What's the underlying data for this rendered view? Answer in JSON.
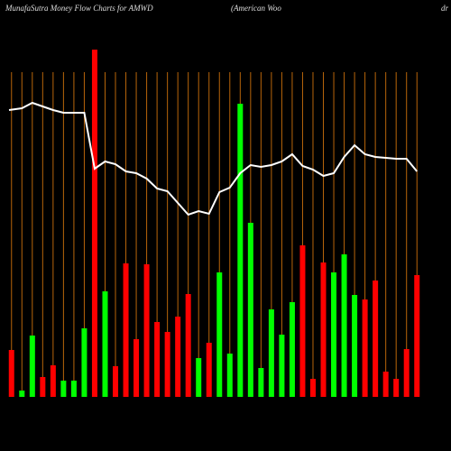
{
  "chart_data": {
    "type": "bar",
    "title": "MunafaSutra  Money Flow  Charts for AMWD",
    "subtitle": "(American Woo",
    "subtitle_tail": "dr",
    "categories": [
      null,
      null,
      null,
      null,
      null,
      null,
      null,
      null,
      null,
      null,
      null,
      null,
      null,
      null,
      null,
      null,
      null,
      null,
      null,
      null,
      null,
      null,
      null,
      null,
      null,
      null,
      null,
      null,
      null,
      null,
      null,
      null,
      null,
      null,
      null,
      null,
      null,
      null,
      null,
      null
    ],
    "values": [
      52,
      7,
      68,
      22,
      35,
      18,
      18,
      76,
      385,
      117,
      34,
      148,
      64,
      147,
      83,
      72,
      89,
      114,
      43,
      60,
      138,
      48,
      325,
      193,
      32,
      97,
      69,
      105,
      168,
      20,
      149,
      138,
      158,
      113,
      108,
      129,
      28,
      20,
      53,
      135
    ],
    "colors": [
      "#ff0000",
      "#00ff00",
      "#00ff00",
      "#ff0000",
      "#ff0000",
      "#00ff00",
      "#00ff00",
      "#00ff00",
      "#ff0000",
      "#00ff00",
      "#ff0000",
      "#ff0000",
      "#ff0000",
      "#ff0000",
      "#ff0000",
      "#ff0000",
      "#ff0000",
      "#ff0000",
      "#00ff00",
      "#ff0000",
      "#00ff00",
      "#00ff00",
      "#00ff00",
      "#00ff00",
      "#00ff00",
      "#00ff00",
      "#00ff00",
      "#00ff00",
      "#ff0000",
      "#ff0000",
      "#ff0000",
      "#00ff00",
      "#00ff00",
      "#00ff00",
      "#ff0000",
      "#ff0000",
      "#ff0000",
      "#ff0000",
      "#ff0000",
      "#ff0000"
    ],
    "line": {
      "color": "#ffffff",
      "values": [
        318,
        320,
        326,
        322,
        318,
        315,
        315,
        315,
        253,
        261,
        258,
        250,
        248,
        242,
        231,
        228,
        215,
        202,
        206,
        203,
        227,
        232,
        248,
        257,
        255,
        257,
        261,
        269,
        256,
        252,
        245,
        248,
        266,
        279,
        269,
        266,
        265,
        264,
        264,
        250
      ]
    },
    "ylim": [
      0,
      400
    ],
    "grid": true,
    "grid_color": "#b8650a"
  }
}
